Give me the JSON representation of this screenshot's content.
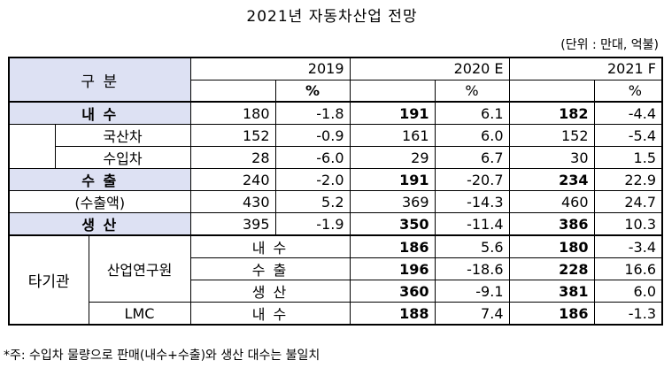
{
  "title": "2021년 자동차산업 전망",
  "unit": "(단위 : 만대, 억불)",
  "header": {
    "category": "구        분",
    "years": [
      "2019",
      "2020 E",
      "2021 F"
    ],
    "pct": "%"
  },
  "rows": {
    "domestic": {
      "label": "내    수",
      "v": [
        "180",
        "-1.8",
        "191",
        "6.1",
        "182",
        "-4.4"
      ]
    },
    "domestic_made": {
      "label": "국산차",
      "v": [
        "152",
        "-0.9",
        "161",
        "6.0",
        "152",
        "-5.4"
      ]
    },
    "imported": {
      "label": "수입차",
      "v": [
        "28",
        "-6.0",
        "29",
        "6.7",
        "30",
        "1.5"
      ]
    },
    "export": {
      "label": "수    출",
      "v": [
        "240",
        "-2.0",
        "191",
        "-20.7",
        "234",
        "22.9"
      ]
    },
    "export_value": {
      "label": "(수출액)",
      "v": [
        "430",
        "5.2",
        "369",
        "-14.3",
        "460",
        "24.7"
      ]
    },
    "production": {
      "label": "생    산",
      "v": [
        "395",
        "-1.9",
        "350",
        "-11.4",
        "386",
        "10.3"
      ]
    }
  },
  "others": {
    "group_label": "타기관",
    "kiet": {
      "label": "산업연구원",
      "rows": [
        {
          "label": "내 수",
          "v": [
            "186",
            "5.6",
            "180",
            "-3.4"
          ]
        },
        {
          "label": "수 출",
          "v": [
            "196",
            "-18.6",
            "228",
            "16.6"
          ]
        },
        {
          "label": "생 산",
          "v": [
            "360",
            "-9.1",
            "381",
            "6.0"
          ]
        }
      ]
    },
    "lmc": {
      "label": "LMC",
      "row": {
        "label": "내 수",
        "v": [
          "188",
          "7.4",
          "186",
          "-1.3"
        ]
      }
    }
  },
  "note": "*주: 수입차 물량으로 판매(내수+수출)와 생산 대수는 불일치",
  "colors": {
    "highlight": "#dde1f3"
  }
}
